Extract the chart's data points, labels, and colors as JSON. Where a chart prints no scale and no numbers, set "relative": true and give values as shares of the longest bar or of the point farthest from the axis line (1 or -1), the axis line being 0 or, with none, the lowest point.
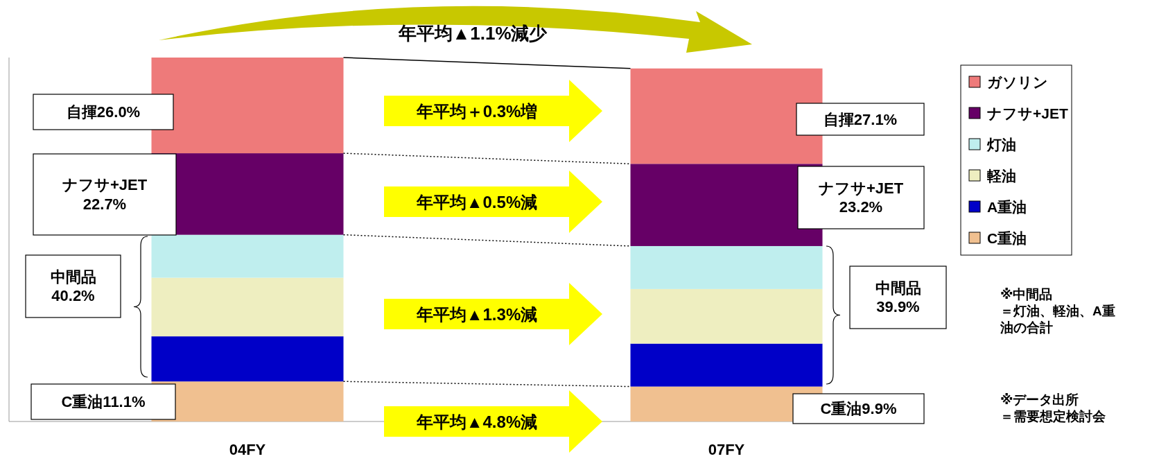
{
  "chart_data": {
    "type": "bar",
    "stacked": true,
    "relative": true,
    "legend": "right",
    "categories": [
      "04FY",
      "07FY"
    ],
    "series": [
      {
        "name": "C重油",
        "color": "#f0c090",
        "values": [
          0.11,
          0.096
        ]
      },
      {
        "name": "A重油",
        "color": "#0000c8",
        "values": [
          0.124,
          0.118
        ]
      },
      {
        "name": "軽油",
        "color": "#eeeec0",
        "values": [
          0.161,
          0.15
        ]
      },
      {
        "name": "灯油",
        "color": "#bfeeee",
        "values": [
          0.118,
          0.118
        ]
      },
      {
        "name": "ナフサ+JET",
        "color": "#660066",
        "values": [
          0.224,
          0.226
        ]
      },
      {
        "name": "ガソリン",
        "color": "#ee7a7a",
        "values": [
          0.263,
          0.262
        ]
      }
    ],
    "annotations": [
      "年平均▲1.1%減少",
      "年平均＋0.3%増",
      "年平均▲0.5%減",
      "年平均▲1.3%減",
      "年平均▲4.8%減",
      "自揮26.0%",
      "ナフサ+JET\n22.7%",
      "中間品\n40.2%",
      "C重油11.1%",
      "自揮27.1%",
      "ナフサ+JET\n23.2%",
      "中間品\n39.9%",
      "C重油9.9%",
      "※中間品",
      "＝灯油、軽油、A重油の合計",
      "※データ出所",
      "＝需要想定検討会"
    ]
  }
}
